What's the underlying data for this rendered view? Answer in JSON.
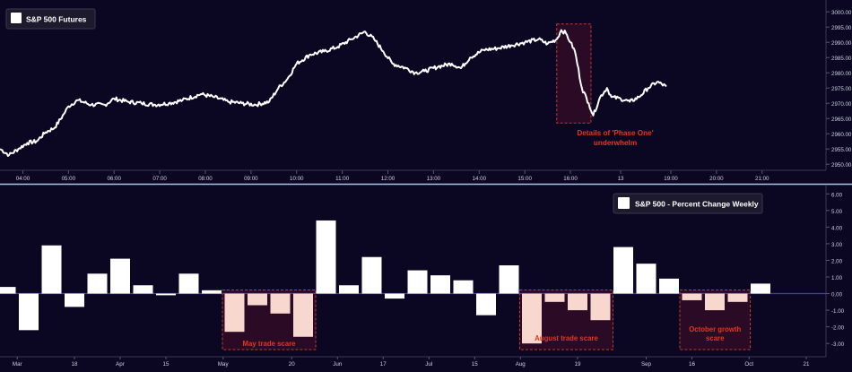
{
  "colors": {
    "background": "#0b0723",
    "line": "#ffffff",
    "axis_text": "#cfcfdf",
    "divider": "#8fd3e6",
    "zero_line": "#3a3ad8",
    "annotation_red": "#e8341c",
    "highlight_box": "#2a0a25",
    "highlight_border": "#c0392b",
    "scare_bar": "#f8d7cf"
  },
  "chart_data": [
    {
      "type": "line",
      "title": "",
      "legend": [
        "S&P 500 Futures"
      ],
      "legend_position": "top-left",
      "x_tick_labels": [
        "04:00",
        "05:00",
        "06:00",
        "07:00",
        "08:00",
        "09:00",
        "10:00",
        "11:00",
        "12:00",
        "13:00",
        "14:00",
        "15:00",
        "16:00",
        "13",
        "19:00",
        "20:00",
        "21:00"
      ],
      "y_tick_labels": [
        "2950.00",
        "2955.00",
        "2960.00",
        "2965.00",
        "2970.00",
        "2975.00",
        "2980.00",
        "2985.00",
        "2990.00",
        "2995.00",
        "3000.00"
      ],
      "ylim": [
        2948,
        3003
      ],
      "x_range_hours": [
        3.5,
        21.6
      ],
      "series": [
        {
          "values_hour_price": [
            [
              3.5,
              2955
            ],
            [
              3.7,
              2953
            ],
            [
              3.9,
              2955
            ],
            [
              4.1,
              2957
            ],
            [
              4.3,
              2957.5
            ],
            [
              4.5,
              2960.5
            ],
            [
              4.7,
              2962
            ],
            [
              4.9,
              2966.5
            ],
            [
              5.0,
              2969
            ],
            [
              5.2,
              2971
            ],
            [
              5.5,
              2969.5
            ],
            [
              5.8,
              2969.5
            ],
            [
              6.0,
              2971.5
            ],
            [
              6.3,
              2970.5
            ],
            [
              6.6,
              2970
            ],
            [
              6.9,
              2969.5
            ],
            [
              7.2,
              2970
            ],
            [
              7.5,
              2971
            ],
            [
              7.9,
              2973
            ],
            [
              8.2,
              2972
            ],
            [
              8.5,
              2970.5
            ],
            [
              8.8,
              2970
            ],
            [
              9.1,
              2969.5
            ],
            [
              9.4,
              2970.5
            ],
            [
              9.6,
              2975
            ],
            [
              9.8,
              2978
            ],
            [
              10.0,
              2983
            ],
            [
              10.3,
              2986
            ],
            [
              10.6,
              2987
            ],
            [
              10.9,
              2988.5
            ],
            [
              11.2,
              2991
            ],
            [
              11.5,
              2993.5
            ],
            [
              11.7,
              2991
            ],
            [
              11.9,
              2987
            ],
            [
              12.1,
              2983
            ],
            [
              12.4,
              2981.5
            ],
            [
              12.6,
              2980
            ],
            [
              12.8,
              2980.5
            ],
            [
              13.1,
              2982
            ],
            [
              13.4,
              2983
            ],
            [
              13.6,
              2981.5
            ],
            [
              13.8,
              2985
            ],
            [
              14.1,
              2987.5
            ],
            [
              14.4,
              2988
            ],
            [
              14.7,
              2989
            ],
            [
              15.0,
              2990
            ],
            [
              15.3,
              2991
            ],
            [
              15.5,
              2989.5
            ],
            [
              15.7,
              2991
            ],
            [
              15.8,
              2994
            ],
            [
              15.9,
              2993
            ],
            [
              16.0,
              2990
            ],
            [
              16.1,
              2987
            ],
            [
              16.25,
              2975
            ],
            [
              16.4,
              2970
            ],
            [
              16.5,
              2966
            ],
            [
              16.65,
              2972
            ],
            [
              16.8,
              2975
            ],
            [
              16.9,
              2972
            ],
            [
              17.1,
              2971.5
            ],
            [
              17.3,
              2970.5
            ],
            [
              17.5,
              2972
            ],
            [
              17.7,
              2975
            ],
            [
              17.9,
              2977
            ],
            [
              18.1,
              2975.5
            ]
          ]
        }
      ],
      "annotations": [
        {
          "text": "Details of 'Phase One' underwhelm",
          "x_hour_range": [
            15.7,
            16.45
          ],
          "y_range": [
            2965,
            2994
          ]
        }
      ]
    },
    {
      "type": "bar",
      "title": "",
      "legend": [
        "S&P 500 - Percent Change Weekly"
      ],
      "legend_position": "top-right",
      "x_tick_labels": [
        {
          "label": "Mar",
          "index": 0.5
        },
        {
          "label": "18",
          "index": 3
        },
        {
          "label": "Apr",
          "index": 5
        },
        {
          "label": "15",
          "index": 7
        },
        {
          "label": "May",
          "index": 9.5
        },
        {
          "label": "20",
          "index": 12.5
        },
        {
          "label": "Jun",
          "index": 14.5
        },
        {
          "label": "17",
          "index": 16.5
        },
        {
          "label": "Jul",
          "index": 18.5
        },
        {
          "label": "15",
          "index": 20.5
        },
        {
          "label": "Aug",
          "index": 22.5
        },
        {
          "label": "19",
          "index": 25
        },
        {
          "label": "Sep",
          "index": 28
        },
        {
          "label": "16",
          "index": 30
        },
        {
          "label": "Oct",
          "index": 32.5
        },
        {
          "label": "21",
          "index": 35
        }
      ],
      "y_tick_labels": [
        "6.00",
        "5.00",
        "4.00",
        "3.00",
        "2.00",
        "1.00",
        "0.00",
        "-1.00",
        "-2.00",
        "-3.00"
      ],
      "ylim": [
        -3.8,
        6.5
      ],
      "series": [
        {
          "name": "S&P 500 - Percent Change Weekly",
          "values": [
            0.4,
            -2.2,
            2.9,
            -0.8,
            1.2,
            2.1,
            0.5,
            -0.1,
            1.2,
            0.2,
            -2.3,
            -0.7,
            -1.2,
            -2.6,
            4.4,
            0.5,
            2.2,
            -0.3,
            1.4,
            1.1,
            0.8,
            -1.3,
            1.7,
            -3.0,
            -0.5,
            -1.0,
            -1.6,
            2.8,
            1.8,
            0.9,
            -0.4,
            -1.0,
            -0.5,
            0.6
          ],
          "scare_indices": [
            10,
            11,
            12,
            13,
            23,
            24,
            25,
            26,
            30,
            31,
            32
          ]
        }
      ],
      "annotations": [
        {
          "text": "May trade scare",
          "index_range": [
            10,
            13
          ]
        },
        {
          "text": "August trade scare",
          "index_range": [
            23,
            26
          ]
        },
        {
          "text": "October growth scare",
          "index_range": [
            30,
            32
          ]
        }
      ]
    }
  ]
}
